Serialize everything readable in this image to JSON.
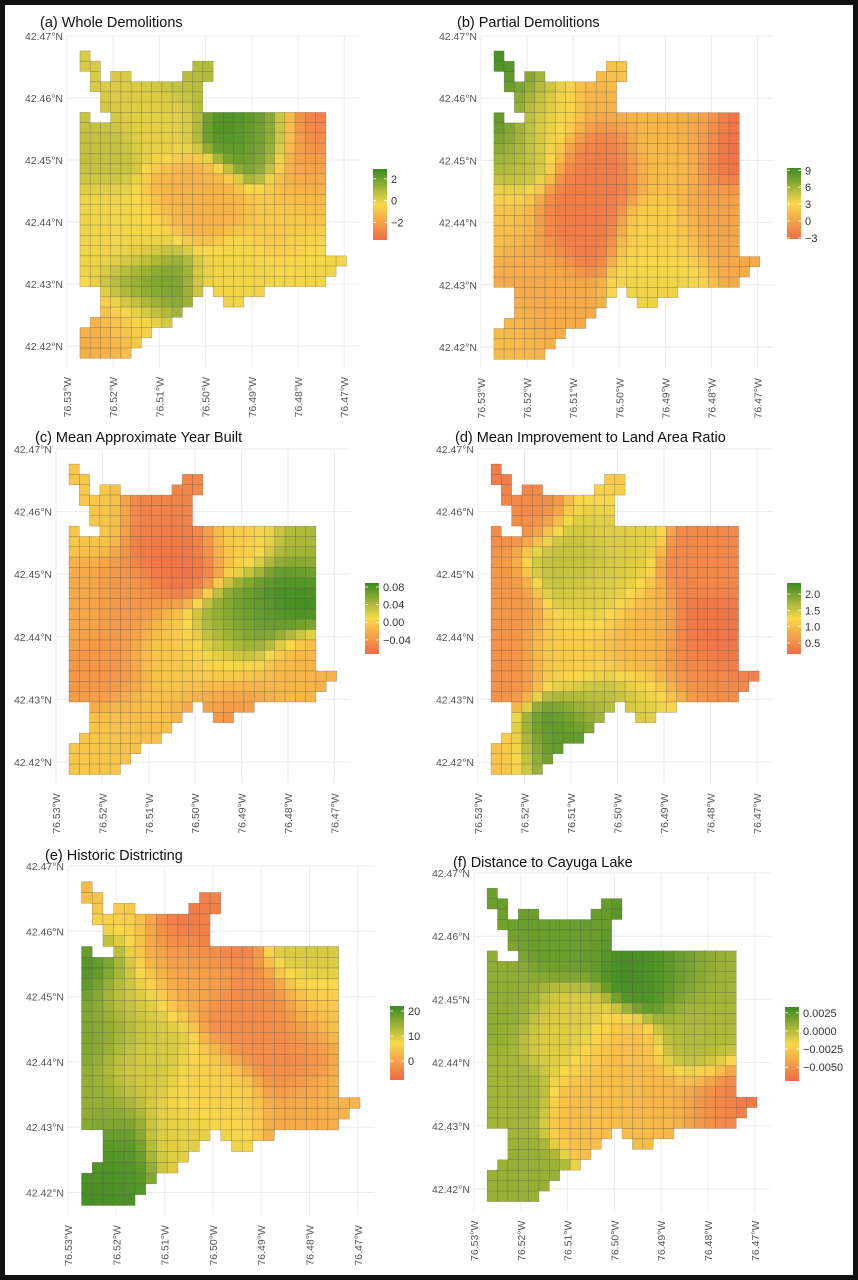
{
  "colors": {
    "low": "#EF6B48",
    "mid": "#F9D84A",
    "high": "#3A8A22",
    "background": "#FFFFFF",
    "gridline": "#EBEBEB"
  },
  "grid_mask": [
    "#.........................",
    "##.........##.............",
    ".#.##.....###.............",
    ".###########..............",
    "..##########..............",
    "..##########..............",
    "#..#####################..",
    "########################..",
    "########################..",
    "########################..",
    "########################..",
    "########################..",
    "########################..",
    "########################..",
    "########################..",
    "########################..",
    "########################..",
    "########################..",
    "########################..",
    "########################..",
    "##########################",
    "#########################.",
    "########################..",
    "..##########.#####........",
    "..#########...##..........",
    "..########................",
    ".########.................",
    "#######...................",
    "######....................",
    "#####....................."
  ],
  "x_ticks": {
    "values": [
      76.53,
      76.52,
      76.51,
      76.5,
      76.49,
      76.48,
      76.47
    ],
    "labels": [
      "76.53°W",
      "76.52°W",
      "76.51°W",
      "76.50°W",
      "76.49°W",
      "76.48°W",
      "76.47°W"
    ]
  },
  "y_ticks": {
    "values": [
      42.47,
      42.46,
      42.45,
      42.44,
      42.43,
      42.42
    ],
    "labels": [
      "42.47°N",
      "42.46°N",
      "42.45°N",
      "42.44°N",
      "42.43°N",
      "42.42°N"
    ]
  },
  "chart_data": [
    {
      "type": "heatmap",
      "title": "(a) Whole Demolitions",
      "legend": {
        "ticks": [
          2,
          0,
          -2
        ],
        "labels": [
          "2",
          "0",
          "−2"
        ],
        "limits": [
          -3.6,
          2.9
        ]
      },
      "values_at_lon_lat": [
        [
          76.4915,
          42.456,
          2.8
        ],
        [
          76.488,
          42.4545,
          1.6
        ],
        [
          76.477,
          42.456,
          -3.2
        ],
        [
          76.476,
          42.451,
          -2.2
        ],
        [
          76.525,
          42.452,
          0.6
        ],
        [
          76.52,
          42.462,
          0.2
        ],
        [
          76.505,
          42.465,
          0.8
        ],
        [
          76.502,
          42.4435,
          -1.5
        ],
        [
          76.511,
          42.4295,
          2.0
        ],
        [
          76.524,
          42.42,
          -1.6
        ],
        [
          76.48,
          42.44,
          -0.8
        ],
        [
          76.474,
          42.4345,
          -0.2
        ],
        [
          76.525,
          42.44,
          -0.2
        ],
        [
          76.515,
          42.437,
          -0.3
        ],
        [
          76.495,
          42.43,
          -0.2
        ],
        [
          76.475,
          42.445,
          -1.5
        ],
        [
          76.51,
          42.457,
          0.0
        ],
        [
          76.515,
          42.423,
          -0.8
        ]
      ]
    },
    {
      "type": "heatmap",
      "title": "(b) Partial Demolitions",
      "legend": {
        "ticks": [
          9,
          6,
          3,
          0,
          -3
        ],
        "labels": [
          "9",
          "6",
          "3",
          "0",
          "−3"
        ],
        "limits": [
          -3.2,
          9.4
        ]
      },
      "values_at_lon_lat": [
        [
          76.526,
          42.466,
          9
        ],
        [
          76.521,
          42.462,
          8
        ],
        [
          76.526,
          42.455,
          9
        ],
        [
          76.524,
          42.45,
          5
        ],
        [
          76.517,
          42.455,
          3.5
        ],
        [
          76.515,
          42.46,
          3
        ],
        [
          76.505,
          42.45,
          -2.2
        ],
        [
          76.51,
          42.44,
          -2.2
        ],
        [
          76.475,
          42.453,
          -3
        ],
        [
          76.485,
          42.455,
          0.5
        ],
        [
          76.49,
          42.452,
          1.5
        ],
        [
          76.49,
          42.437,
          2.5
        ],
        [
          76.49,
          42.43,
          3.5
        ],
        [
          76.478,
          42.44,
          0
        ],
        [
          76.471,
          42.4345,
          0.5
        ],
        [
          76.524,
          42.42,
          1.5
        ],
        [
          76.515,
          42.425,
          0.5
        ],
        [
          76.525,
          42.44,
          1.8
        ],
        [
          76.52,
          42.432,
          0.5
        ],
        [
          76.5,
          42.464,
          2.5
        ],
        [
          76.503,
          42.461,
          0.5
        ]
      ]
    },
    {
      "type": "heatmap",
      "title": "(c) Mean Approximate Year Built",
      "legend": {
        "ticks": [
          0.08,
          0.04,
          0.0,
          -0.04
        ],
        "labels": [
          "0.08",
          "0.04",
          "0.00",
          "−0.04"
        ],
        "limits": [
          -0.072,
          0.089
        ]
      },
      "values_at_lon_lat": [
        [
          76.478,
          42.447,
          0.085
        ],
        [
          76.487,
          42.443,
          0.075
        ],
        [
          76.493,
          42.441,
          0.05
        ],
        [
          76.476,
          42.455,
          0.04
        ],
        [
          76.49,
          42.456,
          0.0
        ],
        [
          76.503,
          42.452,
          -0.065
        ],
        [
          76.505,
          42.46,
          -0.055
        ],
        [
          76.5,
          42.465,
          -0.05
        ],
        [
          76.525,
          42.46,
          -0.005
        ],
        [
          76.525,
          42.445,
          -0.025
        ],
        [
          76.515,
          42.445,
          -0.04
        ],
        [
          76.52,
          42.435,
          -0.04
        ],
        [
          76.52,
          42.422,
          -0.005
        ],
        [
          76.512,
          42.425,
          -0.01
        ],
        [
          76.505,
          42.438,
          -0.005
        ],
        [
          76.495,
          42.435,
          0.0
        ],
        [
          76.48,
          42.434,
          -0.015
        ],
        [
          76.473,
          42.434,
          -0.02
        ],
        [
          76.493,
          42.428,
          -0.04
        ]
      ]
    },
    {
      "type": "heatmap",
      "title": "(d) Mean Improvement to Land Area Ratio",
      "legend": {
        "ticks": [
          2.0,
          1.5,
          1.0,
          0.5
        ],
        "labels": [
          "2.0",
          "1.5",
          "1.0",
          "0.5"
        ],
        "limits": [
          0.16,
          2.34
        ]
      },
      "values_at_lon_lat": [
        [
          76.526,
          42.466,
          0.3
        ],
        [
          76.52,
          42.461,
          0.5
        ],
        [
          76.51,
          42.452,
          1.6
        ],
        [
          76.505,
          42.447,
          1.4
        ],
        [
          76.48,
          42.44,
          0.25
        ],
        [
          76.478,
          42.452,
          0.45
        ],
        [
          76.483,
          42.433,
          0.5
        ],
        [
          76.526,
          42.445,
          0.6
        ],
        [
          76.526,
          42.435,
          0.55
        ],
        [
          76.51,
          42.424,
          2.3
        ],
        [
          76.514,
          42.421,
          2.0
        ],
        [
          76.505,
          42.428,
          1.6
        ],
        [
          76.525,
          42.42,
          1.0
        ],
        [
          76.51,
          42.437,
          1.1
        ],
        [
          76.495,
          42.44,
          0.9
        ],
        [
          76.492,
          42.428,
          1.4
        ],
        [
          76.5,
          42.465,
          1.1
        ],
        [
          76.502,
          42.458,
          1.4
        ]
      ]
    },
    {
      "type": "heatmap",
      "title": "(e) Historic Districting",
      "legend": {
        "ticks": [
          20,
          10,
          0
        ],
        "labels": [
          "20",
          "10",
          "0"
        ],
        "limits": [
          -7.6,
          22
        ]
      },
      "values_at_lon_lat": [
        [
          76.526,
          42.455,
          21
        ],
        [
          76.524,
          42.445,
          17
        ],
        [
          76.525,
          42.433,
          15
        ],
        [
          76.522,
          42.425,
          20
        ],
        [
          76.526,
          42.42,
          21
        ],
        [
          76.517,
          42.45,
          10
        ],
        [
          76.515,
          42.44,
          10
        ],
        [
          76.505,
          42.462,
          -6
        ],
        [
          76.5,
          42.465,
          -4
        ],
        [
          76.49,
          42.445,
          -3
        ],
        [
          76.483,
          42.442,
          -3
        ],
        [
          76.475,
          42.456,
          10
        ],
        [
          76.476,
          42.448,
          5
        ],
        [
          76.5,
          42.435,
          6
        ],
        [
          76.505,
          42.428,
          9
        ],
        [
          76.478,
          42.432,
          1
        ],
        [
          76.471,
          42.434,
          3
        ],
        [
          76.526,
          42.466,
          3
        ],
        [
          76.52,
          42.462,
          6
        ],
        [
          76.508,
          42.455,
          0
        ]
      ]
    },
    {
      "type": "heatmap",
      "title": "(f) Distance to Cayuga Lake",
      "legend": {
        "ticks": [
          0.0025,
          0.0,
          -0.0025,
          -0.005
        ],
        "labels": [
          "0.0025",
          "0.0000",
          "−0.0025",
          "−0.0050"
        ],
        "limits": [
          -0.0069,
          0.0033
        ]
      },
      "values_at_lon_lat": [
        [
          76.493,
          42.456,
          0.003
        ],
        [
          76.485,
          42.456,
          0.002
        ],
        [
          76.478,
          42.455,
          0.0005
        ],
        [
          76.51,
          42.46,
          0.002
        ],
        [
          76.525,
          42.45,
          0.001
        ],
        [
          76.525,
          42.435,
          0.0005
        ],
        [
          76.52,
          42.42,
          0.0008
        ],
        [
          76.5,
          42.44,
          -0.003
        ],
        [
          76.503,
          42.432,
          -0.003
        ],
        [
          76.48,
          42.443,
          0.0
        ],
        [
          76.478,
          42.447,
          0.0005
        ],
        [
          76.473,
          42.4345,
          -0.0065
        ],
        [
          76.478,
          42.432,
          -0.005
        ],
        [
          76.49,
          42.432,
          -0.0035
        ],
        [
          76.492,
          42.428,
          -0.003
        ],
        [
          76.51,
          42.445,
          -0.001
        ]
      ]
    }
  ]
}
